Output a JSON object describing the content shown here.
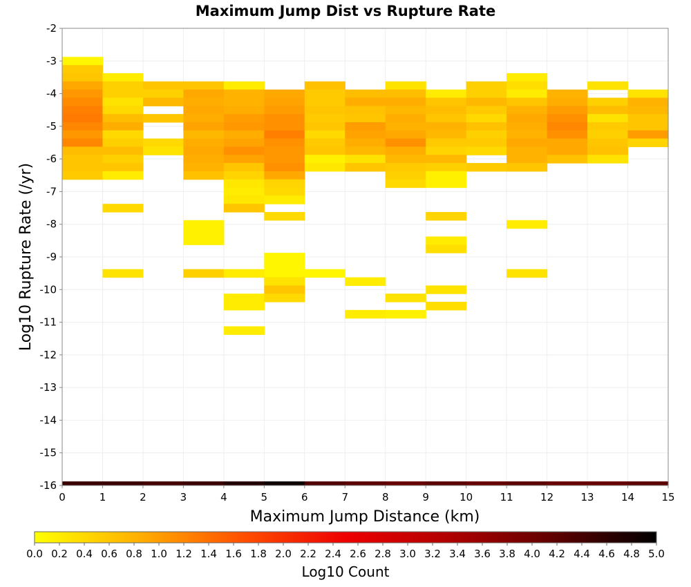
{
  "chart_data": {
    "type": "heatmap",
    "title": "Maximum Jump Dist vs Rupture Rate",
    "xlabel": "Maximum Jump Distance (km)",
    "ylabel": "Log10 Rupture Rate (/yr)",
    "xlim": [
      0,
      15
    ],
    "ylim": [
      -16,
      -2
    ],
    "x_ticks": [
      "0",
      "1",
      "2",
      "3",
      "4",
      "5",
      "6",
      "7",
      "8",
      "9",
      "10",
      "11",
      "12",
      "13",
      "14",
      "15"
    ],
    "y_ticks": [
      "-2",
      "-3",
      "-4",
      "-5",
      "-6",
      "-7",
      "-8",
      "-9",
      "-10",
      "-11",
      "-12",
      "-13",
      "-14",
      "-15",
      "-16"
    ],
    "grid": true,
    "bin_width_x": 1,
    "bin_height_y": 0.25,
    "colorbar": {
      "label": "Log10 Count",
      "min": 0.0,
      "max": 5.0,
      "ticks": [
        "0.0",
        "0.2",
        "0.4",
        "0.6",
        "0.8",
        "1.0",
        "1.2",
        "1.4",
        "1.6",
        "1.8",
        "2.0",
        "2.2",
        "2.4",
        "2.6",
        "2.8",
        "3.0",
        "3.2",
        "3.4",
        "3.6",
        "3.8",
        "4.0",
        "4.2",
        "4.4",
        "4.6",
        "4.8",
        "5.0"
      ],
      "colors": [
        "#ffff00",
        "#ffb000",
        "#ff5000",
        "#ee0000",
        "#b00000",
        "#600000",
        "#000000"
      ]
    },
    "cells": [
      {
        "x": 0,
        "y": -3.0,
        "v": 0.1
      },
      {
        "x": 0,
        "y": -3.25,
        "v": 0.55
      },
      {
        "x": 0,
        "y": -3.5,
        "v": 0.6
      },
      {
        "x": 0,
        "y": -3.75,
        "v": 0.9
      },
      {
        "x": 0,
        "y": -4.0,
        "v": 1.05
      },
      {
        "x": 0,
        "y": -4.25,
        "v": 1.15
      },
      {
        "x": 0,
        "y": -4.5,
        "v": 1.25
      },
      {
        "x": 0,
        "y": -4.75,
        "v": 1.3
      },
      {
        "x": 0,
        "y": -5.0,
        "v": 1.2
      },
      {
        "x": 0,
        "y": -5.25,
        "v": 1.05
      },
      {
        "x": 0,
        "y": -5.5,
        "v": 1.2
      },
      {
        "x": 0,
        "y": -5.75,
        "v": 0.7
      },
      {
        "x": 0,
        "y": -6.0,
        "v": 0.6
      },
      {
        "x": 0,
        "y": -6.25,
        "v": 0.6
      },
      {
        "x": 0,
        "y": -6.5,
        "v": 0.55
      },
      {
        "x": 1,
        "y": -3.5,
        "v": 0.2
      },
      {
        "x": 1,
        "y": -3.75,
        "v": 0.5
      },
      {
        "x": 1,
        "y": -4.0,
        "v": 0.5
      },
      {
        "x": 1,
        "y": -4.25,
        "v": 0.3
      },
      {
        "x": 1,
        "y": -4.5,
        "v": 0.4
      },
      {
        "x": 1,
        "y": -4.75,
        "v": 0.7
      },
      {
        "x": 1,
        "y": -5.0,
        "v": 0.85
      },
      {
        "x": 1,
        "y": -5.25,
        "v": 0.4
      },
      {
        "x": 1,
        "y": -5.5,
        "v": 0.5
      },
      {
        "x": 1,
        "y": -5.75,
        "v": 0.7
      },
      {
        "x": 1,
        "y": -6.0,
        "v": 0.5
      },
      {
        "x": 1,
        "y": -6.25,
        "v": 0.6
      },
      {
        "x": 1,
        "y": -6.5,
        "v": 0.2
      },
      {
        "x": 1,
        "y": -7.5,
        "v": 0.4
      },
      {
        "x": 1,
        "y": -9.5,
        "v": 0.3
      },
      {
        "x": 2,
        "y": -3.75,
        "v": 0.6
      },
      {
        "x": 2,
        "y": -4.0,
        "v": 0.5
      },
      {
        "x": 2,
        "y": -4.25,
        "v": 0.75
      },
      {
        "x": 2,
        "y": -4.75,
        "v": 0.6
      },
      {
        "x": 2,
        "y": -5.5,
        "v": 0.4
      },
      {
        "x": 2,
        "y": -5.75,
        "v": 0.3
      },
      {
        "x": 3,
        "y": -3.75,
        "v": 0.6
      },
      {
        "x": 3,
        "y": -4.0,
        "v": 0.9
      },
      {
        "x": 3,
        "y": -4.25,
        "v": 0.85
      },
      {
        "x": 3,
        "y": -4.5,
        "v": 0.9
      },
      {
        "x": 3,
        "y": -4.75,
        "v": 0.85
      },
      {
        "x": 3,
        "y": -5.0,
        "v": 0.95
      },
      {
        "x": 3,
        "y": -5.25,
        "v": 0.75
      },
      {
        "x": 3,
        "y": -5.5,
        "v": 0.85
      },
      {
        "x": 3,
        "y": -5.75,
        "v": 0.9
      },
      {
        "x": 3,
        "y": -6.0,
        "v": 0.85
      },
      {
        "x": 3,
        "y": -6.25,
        "v": 0.8
      },
      {
        "x": 3,
        "y": -6.5,
        "v": 0.65
      },
      {
        "x": 3,
        "y": -8.0,
        "v": 0.15
      },
      {
        "x": 3,
        "y": -8.25,
        "v": 0.15
      },
      {
        "x": 3,
        "y": -8.5,
        "v": 0.15
      },
      {
        "x": 3,
        "y": -9.5,
        "v": 0.5
      },
      {
        "x": 4,
        "y": -3.75,
        "v": 0.2
      },
      {
        "x": 4,
        "y": -4.0,
        "v": 0.8
      },
      {
        "x": 4,
        "y": -4.25,
        "v": 0.8
      },
      {
        "x": 4,
        "y": -4.5,
        "v": 0.85
      },
      {
        "x": 4,
        "y": -4.75,
        "v": 1.0
      },
      {
        "x": 4,
        "y": -5.0,
        "v": 1.05
      },
      {
        "x": 4,
        "y": -5.25,
        "v": 0.85
      },
      {
        "x": 4,
        "y": -5.5,
        "v": 0.95
      },
      {
        "x": 4,
        "y": -5.75,
        "v": 1.1
      },
      {
        "x": 4,
        "y": -6.0,
        "v": 0.95
      },
      {
        "x": 4,
        "y": -6.25,
        "v": 0.6
      },
      {
        "x": 4,
        "y": -6.5,
        "v": 0.45
      },
      {
        "x": 4,
        "y": -6.75,
        "v": 0.25
      },
      {
        "x": 4,
        "y": -7.0,
        "v": 0.2
      },
      {
        "x": 4,
        "y": -7.25,
        "v": 0.25
      },
      {
        "x": 4,
        "y": -7.5,
        "v": 0.6
      },
      {
        "x": 4,
        "y": -9.5,
        "v": 0.2
      },
      {
        "x": 4,
        "y": -10.25,
        "v": 0.2
      },
      {
        "x": 4,
        "y": -10.5,
        "v": 0.2
      },
      {
        "x": 4,
        "y": -11.25,
        "v": 0.2
      },
      {
        "x": 5,
        "y": -4.0,
        "v": 0.9
      },
      {
        "x": 5,
        "y": -4.25,
        "v": 0.95
      },
      {
        "x": 5,
        "y": -4.5,
        "v": 1.0
      },
      {
        "x": 5,
        "y": -4.75,
        "v": 1.1
      },
      {
        "x": 5,
        "y": -5.0,
        "v": 1.1
      },
      {
        "x": 5,
        "y": -5.25,
        "v": 1.25
      },
      {
        "x": 5,
        "y": -5.5,
        "v": 1.1
      },
      {
        "x": 5,
        "y": -5.75,
        "v": 1.05
      },
      {
        "x": 5,
        "y": -6.0,
        "v": 1.05
      },
      {
        "x": 5,
        "y": -6.25,
        "v": 1.1
      },
      {
        "x": 5,
        "y": -6.5,
        "v": 0.9
      },
      {
        "x": 5,
        "y": -6.75,
        "v": 0.45
      },
      {
        "x": 5,
        "y": -7.0,
        "v": 0.4
      },
      {
        "x": 5,
        "y": -7.25,
        "v": 0.2
      },
      {
        "x": 5,
        "y": -7.75,
        "v": 0.4
      },
      {
        "x": 5,
        "y": -9.0,
        "v": 0.1
      },
      {
        "x": 5,
        "y": -9.25,
        "v": 0.1
      },
      {
        "x": 5,
        "y": -9.5,
        "v": 0.1
      },
      {
        "x": 5,
        "y": -9.75,
        "v": 0.3
      },
      {
        "x": 5,
        "y": -10.0,
        "v": 0.6
      },
      {
        "x": 5,
        "y": -10.25,
        "v": 0.4
      },
      {
        "x": 6,
        "y": -3.75,
        "v": 0.65
      },
      {
        "x": 6,
        "y": -4.0,
        "v": 0.55
      },
      {
        "x": 6,
        "y": -4.25,
        "v": 0.55
      },
      {
        "x": 6,
        "y": -4.5,
        "v": 0.6
      },
      {
        "x": 6,
        "y": -4.75,
        "v": 0.55
      },
      {
        "x": 6,
        "y": -5.0,
        "v": 0.6
      },
      {
        "x": 6,
        "y": -5.25,
        "v": 0.4
      },
      {
        "x": 6,
        "y": -5.5,
        "v": 0.55
      },
      {
        "x": 6,
        "y": -5.75,
        "v": 0.6
      },
      {
        "x": 6,
        "y": -6.0,
        "v": 0.15
      },
      {
        "x": 6,
        "y": -6.25,
        "v": 0.25
      },
      {
        "x": 6,
        "y": -9.5,
        "v": 0.1
      },
      {
        "x": 7,
        "y": -4.0,
        "v": 0.7
      },
      {
        "x": 7,
        "y": -4.25,
        "v": 0.85
      },
      {
        "x": 7,
        "y": -4.5,
        "v": 0.65
      },
      {
        "x": 7,
        "y": -4.75,
        "v": 0.6
      },
      {
        "x": 7,
        "y": -5.0,
        "v": 1.0
      },
      {
        "x": 7,
        "y": -5.25,
        "v": 0.95
      },
      {
        "x": 7,
        "y": -5.5,
        "v": 0.85
      },
      {
        "x": 7,
        "y": -5.75,
        "v": 0.75
      },
      {
        "x": 7,
        "y": -6.0,
        "v": 0.3
      },
      {
        "x": 7,
        "y": -6.25,
        "v": 0.6
      },
      {
        "x": 7,
        "y": -9.75,
        "v": 0.2
      },
      {
        "x": 7,
        "y": -10.75,
        "v": 0.2
      },
      {
        "x": 8,
        "y": -3.75,
        "v": 0.3
      },
      {
        "x": 8,
        "y": -4.0,
        "v": 0.7
      },
      {
        "x": 8,
        "y": -4.25,
        "v": 0.85
      },
      {
        "x": 8,
        "y": -4.5,
        "v": 0.75
      },
      {
        "x": 8,
        "y": -4.75,
        "v": 0.85
      },
      {
        "x": 8,
        "y": -5.0,
        "v": 0.8
      },
      {
        "x": 8,
        "y": -5.25,
        "v": 0.9
      },
      {
        "x": 8,
        "y": -5.5,
        "v": 1.1
      },
      {
        "x": 8,
        "y": -5.75,
        "v": 0.85
      },
      {
        "x": 8,
        "y": -6.0,
        "v": 0.75
      },
      {
        "x": 8,
        "y": -6.25,
        "v": 0.55
      },
      {
        "x": 8,
        "y": -6.5,
        "v": 0.5
      },
      {
        "x": 8,
        "y": -6.75,
        "v": 0.4
      },
      {
        "x": 8,
        "y": -10.25,
        "v": 0.3
      },
      {
        "x": 8,
        "y": -10.75,
        "v": 0.15
      },
      {
        "x": 9,
        "y": -4.0,
        "v": 0.2
      },
      {
        "x": 9,
        "y": -4.25,
        "v": 0.6
      },
      {
        "x": 9,
        "y": -4.5,
        "v": 0.7
      },
      {
        "x": 9,
        "y": -4.75,
        "v": 0.6
      },
      {
        "x": 9,
        "y": -5.0,
        "v": 0.8
      },
      {
        "x": 9,
        "y": -5.25,
        "v": 0.75
      },
      {
        "x": 9,
        "y": -5.5,
        "v": 0.55
      },
      {
        "x": 9,
        "y": -5.75,
        "v": 0.45
      },
      {
        "x": 9,
        "y": -6.0,
        "v": 0.75
      },
      {
        "x": 9,
        "y": -6.25,
        "v": 0.5
      },
      {
        "x": 9,
        "y": -6.5,
        "v": 0.15
      },
      {
        "x": 9,
        "y": -6.75,
        "v": 0.15
      },
      {
        "x": 9,
        "y": -7.75,
        "v": 0.45
      },
      {
        "x": 9,
        "y": -8.5,
        "v": 0.2
      },
      {
        "x": 9,
        "y": -8.75,
        "v": 0.35
      },
      {
        "x": 9,
        "y": -10.0,
        "v": 0.3
      },
      {
        "x": 9,
        "y": -10.5,
        "v": 0.35
      },
      {
        "x": 10,
        "y": -3.75,
        "v": 0.5
      },
      {
        "x": 10,
        "y": -4.0,
        "v": 0.5
      },
      {
        "x": 10,
        "y": -4.25,
        "v": 0.75
      },
      {
        "x": 10,
        "y": -4.5,
        "v": 0.55
      },
      {
        "x": 10,
        "y": -4.75,
        "v": 0.4
      },
      {
        "x": 10,
        "y": -5.0,
        "v": 0.65
      },
      {
        "x": 10,
        "y": -5.25,
        "v": 0.5
      },
      {
        "x": 10,
        "y": -5.5,
        "v": 0.55
      },
      {
        "x": 10,
        "y": -5.75,
        "v": 0.4
      },
      {
        "x": 10,
        "y": -6.25,
        "v": 0.55
      },
      {
        "x": 11,
        "y": -3.5,
        "v": 0.2
      },
      {
        "x": 11,
        "y": -3.75,
        "v": 0.35
      },
      {
        "x": 11,
        "y": -4.0,
        "v": 0.2
      },
      {
        "x": 11,
        "y": -4.25,
        "v": 0.6
      },
      {
        "x": 11,
        "y": -4.5,
        "v": 0.8
      },
      {
        "x": 11,
        "y": -4.75,
        "v": 0.9
      },
      {
        "x": 11,
        "y": -5.0,
        "v": 0.85
      },
      {
        "x": 11,
        "y": -5.25,
        "v": 0.8
      },
      {
        "x": 11,
        "y": -5.5,
        "v": 0.9
      },
      {
        "x": 11,
        "y": -5.75,
        "v": 0.8
      },
      {
        "x": 11,
        "y": -6.0,
        "v": 0.8
      },
      {
        "x": 11,
        "y": -6.25,
        "v": 0.6
      },
      {
        "x": 11,
        "y": -8.0,
        "v": 0.2
      },
      {
        "x": 11,
        "y": -9.5,
        "v": 0.3
      },
      {
        "x": 12,
        "y": -4.0,
        "v": 0.8
      },
      {
        "x": 12,
        "y": -4.25,
        "v": 0.85
      },
      {
        "x": 12,
        "y": -4.5,
        "v": 1.0
      },
      {
        "x": 12,
        "y": -4.75,
        "v": 1.1
      },
      {
        "x": 12,
        "y": -5.0,
        "v": 1.2
      },
      {
        "x": 12,
        "y": -5.25,
        "v": 1.1
      },
      {
        "x": 12,
        "y": -5.5,
        "v": 0.9
      },
      {
        "x": 12,
        "y": -5.75,
        "v": 0.9
      },
      {
        "x": 12,
        "y": -6.0,
        "v": 0.65
      },
      {
        "x": 13,
        "y": -3.75,
        "v": 0.3
      },
      {
        "x": 13,
        "y": -4.25,
        "v": 0.5
      },
      {
        "x": 13,
        "y": -4.5,
        "v": 0.7
      },
      {
        "x": 13,
        "y": -4.75,
        "v": 0.3
      },
      {
        "x": 13,
        "y": -5.0,
        "v": 0.55
      },
      {
        "x": 13,
        "y": -5.25,
        "v": 0.5
      },
      {
        "x": 13,
        "y": -5.5,
        "v": 0.6
      },
      {
        "x": 13,
        "y": -5.75,
        "v": 0.65
      },
      {
        "x": 13,
        "y": -6.0,
        "v": 0.3
      },
      {
        "x": 14,
        "y": -4.0,
        "v": 0.3
      },
      {
        "x": 14,
        "y": -4.25,
        "v": 0.8
      },
      {
        "x": 14,
        "y": -4.5,
        "v": 0.75
      },
      {
        "x": 14,
        "y": -4.75,
        "v": 0.6
      },
      {
        "x": 14,
        "y": -5.0,
        "v": 0.6
      },
      {
        "x": 14,
        "y": -5.25,
        "v": 1.0
      },
      {
        "x": 14,
        "y": -5.5,
        "v": 0.45
      }
    ],
    "bottom_row": {
      "y": -16,
      "cells": [
        {
          "x": 0,
          "v": 4.5
        },
        {
          "x": 1,
          "v": 4.5
        },
        {
          "x": 2,
          "v": 4.4
        },
        {
          "x": 3,
          "v": 4.5
        },
        {
          "x": 4,
          "v": 4.7
        },
        {
          "x": 5,
          "v": 4.9
        },
        {
          "x": 6,
          "v": 4.3
        },
        {
          "x": 7,
          "v": 4.2
        },
        {
          "x": 8,
          "v": 4.1
        },
        {
          "x": 9,
          "v": 4.2
        },
        {
          "x": 10,
          "v": 4.1
        },
        {
          "x": 11,
          "v": 4.2
        },
        {
          "x": 12,
          "v": 4.1
        },
        {
          "x": 13,
          "v": 4.1
        },
        {
          "x": 14,
          "v": 4.2
        }
      ]
    }
  }
}
